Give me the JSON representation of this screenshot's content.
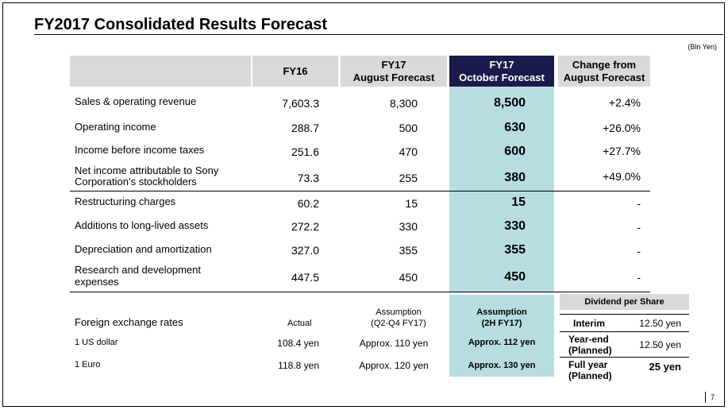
{
  "title": "FY2017 Consolidated Results Forecast",
  "unit": "(Bln Yen)",
  "headers": {
    "fy16": "FY16",
    "aug_line1": "FY17",
    "aug_line2": "August Forecast",
    "oct_line1": "FY17",
    "oct_line2": "October Forecast",
    "chg_line1": "Change from",
    "chg_line2": "August Forecast"
  },
  "rows": [
    {
      "label1": "Sales & operating revenue",
      "label2": "",
      "fy16": "7,603.3",
      "aug": "8,300",
      "oct": "8,500",
      "chg": "+2.4%"
    },
    {
      "label1": "Operating income",
      "label2": "",
      "fy16": "288.7",
      "aug": "500",
      "oct": "630",
      "chg": "+26.0%"
    },
    {
      "label1": "Income before income taxes",
      "label2": "",
      "fy16": "251.6",
      "aug": "470",
      "oct": "600",
      "chg": "+27.7%"
    },
    {
      "label1": "Net income attributable to Sony",
      "label2": "Corporation’s stockholders",
      "fy16": "73.3",
      "aug": "255",
      "oct": "380",
      "chg": "+49.0%"
    },
    {
      "label1": "Restructuring charges",
      "label2": "",
      "fy16": "60.2",
      "aug": "15",
      "oct": "15",
      "chg": "-"
    },
    {
      "label1": "Additions to long-lived assets",
      "label2": "",
      "fy16": "272.2",
      "aug": "330",
      "oct": "330",
      "chg": "-"
    },
    {
      "label1": "Depreciation and amortization",
      "label2": "",
      "fy16": "327.0",
      "aug": "355",
      "oct": "355",
      "chg": "-"
    },
    {
      "label1": "Research and development",
      "label2": "expenses",
      "fy16": "447.5",
      "aug": "450",
      "oct": "450",
      "chg": "-"
    }
  ],
  "fx": {
    "label": "Foreign exchange rates",
    "actual_header": "Actual",
    "aug_header1": "Assumption",
    "aug_header2": "(Q2-Q4 FY17)",
    "oct_header1": "Assumption",
    "oct_header2": "(2H FY17)",
    "rows": [
      {
        "label": "1 US dollar",
        "actual": "108.4 yen",
        "aug": "Approx. 110 yen",
        "oct": "Approx. 112 yen"
      },
      {
        "label": "1 Euro",
        "actual": "118.8 yen",
        "aug": "Approx. 120 yen",
        "oct": "Approx. 130 yen"
      }
    ]
  },
  "dividend": {
    "title": "Dividend per Share",
    "interim_label": "Interim",
    "interim_value": "12.50 yen",
    "yearend_label1": "Year-end",
    "yearend_label2": "(Planned)",
    "yearend_value": "12.50 yen",
    "full_label1": "Full year",
    "full_label2": "(Planned)",
    "full_value": "25 yen"
  },
  "page_number": "7",
  "colors": {
    "header_dark": "#1a1a4d",
    "header_gray": "#d9d9d9",
    "highlight": "#b7dde3"
  }
}
